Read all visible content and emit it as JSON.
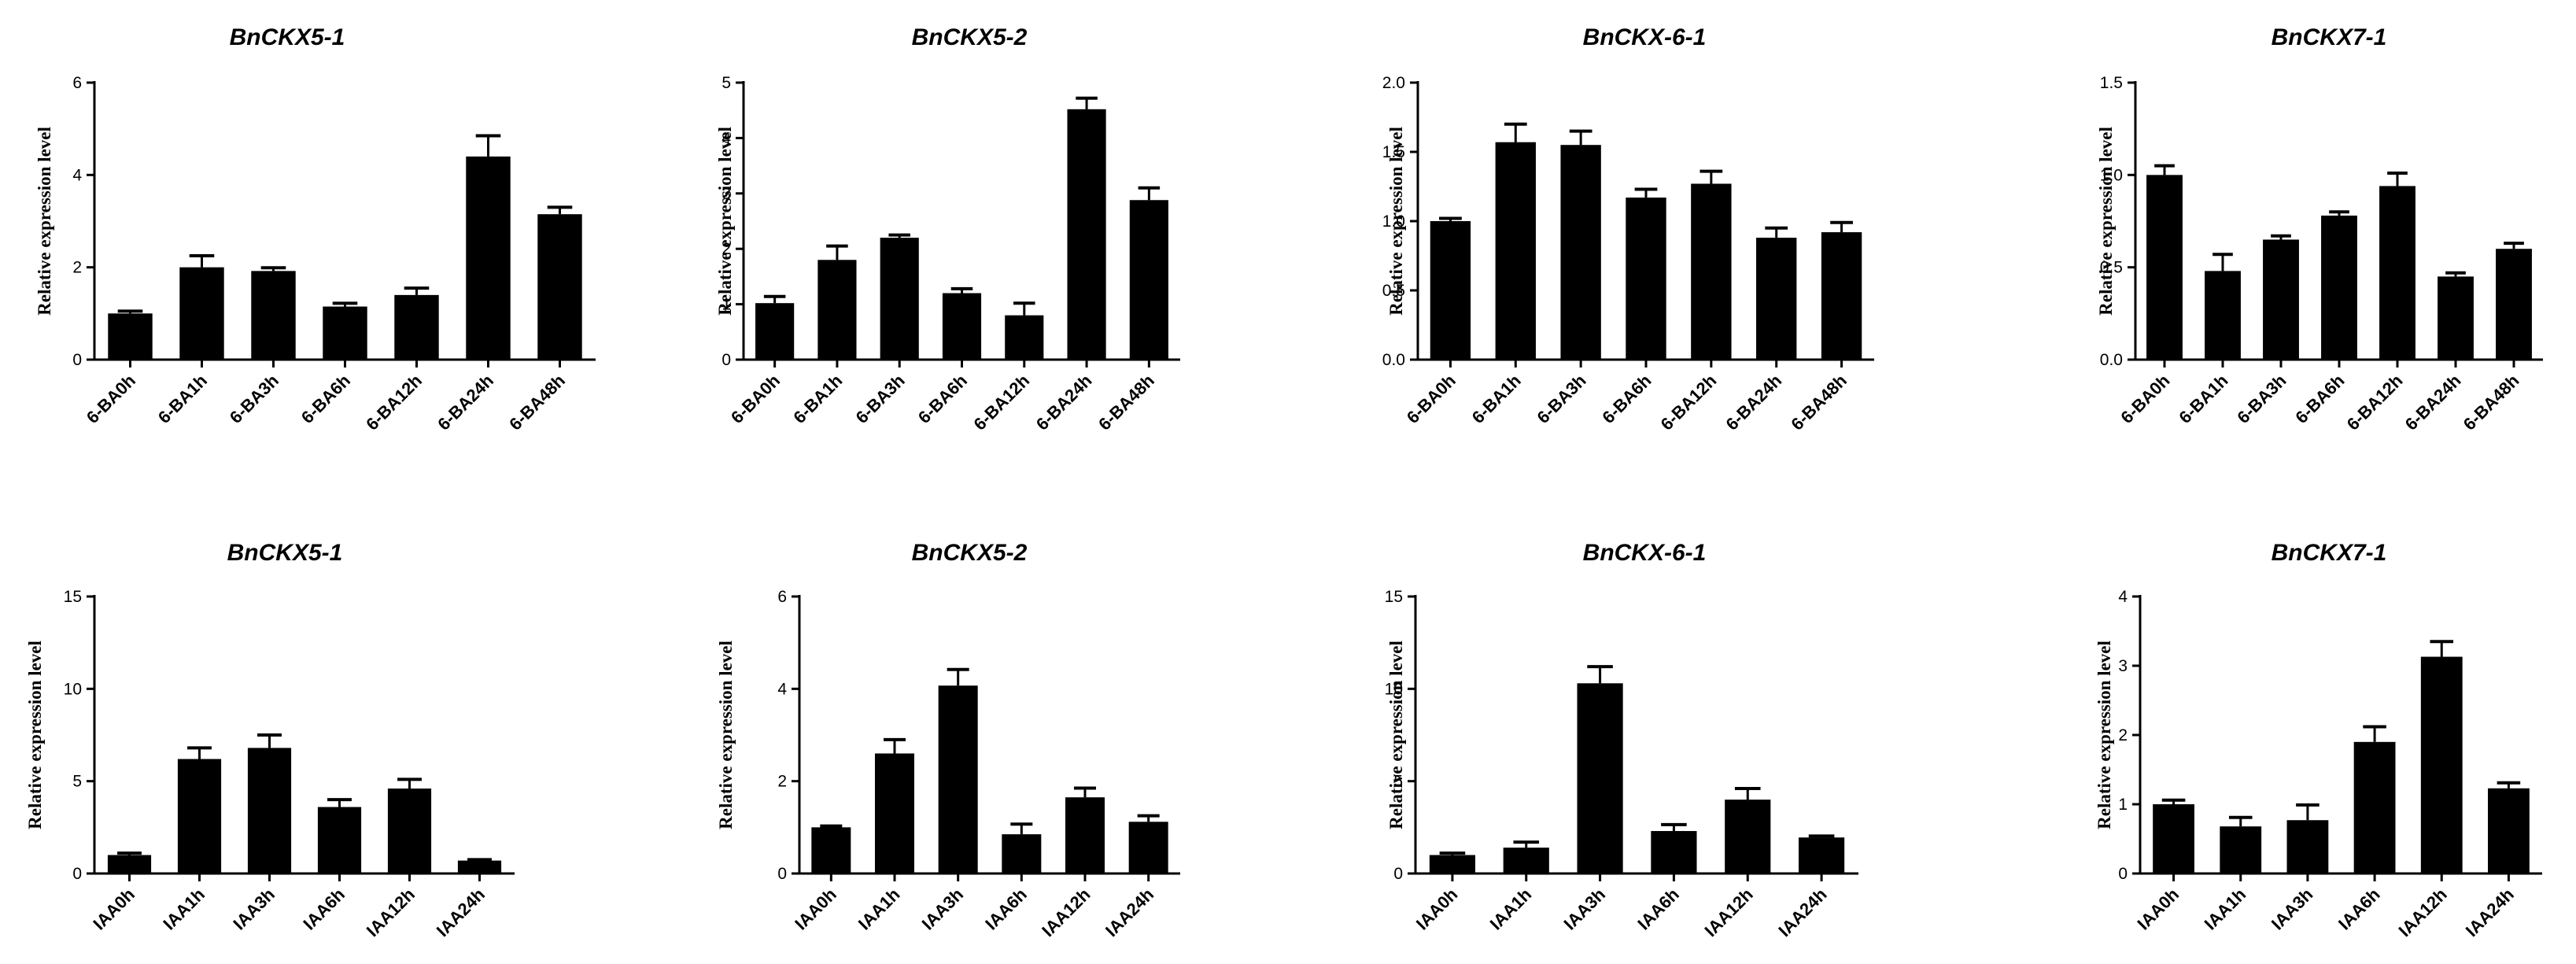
{
  "chart_data": [
    {
      "type": "bar",
      "title": "BnCKX5-1",
      "ylabel": "Relative expression level",
      "ylim": [
        0,
        6
      ],
      "yticks": [
        "0",
        "2",
        "4",
        "6"
      ],
      "categories": [
        "6-BA0h",
        "6-BA1h",
        "6-BA3h",
        "6-BA6h",
        "6-BA12h",
        "6-BA24h",
        "6-BA48h"
      ],
      "values": [
        1.0,
        2.0,
        1.92,
        1.15,
        1.4,
        4.4,
        3.15
      ],
      "errors": [
        0.05,
        0.25,
        0.07,
        0.07,
        0.15,
        0.45,
        0.15
      ],
      "bar_color": "#000000"
    },
    {
      "type": "bar",
      "title": "BnCKX5-2",
      "ylabel": "Relative expression level",
      "ylim": [
        0,
        5
      ],
      "yticks": [
        "0",
        "1",
        "2",
        "3",
        "4",
        "5"
      ],
      "categories": [
        "6-BA0h",
        "6-BA1h",
        "6-BA3h",
        "6-BA6h",
        "6-BA12h",
        "6-BA24h",
        "6-BA48h"
      ],
      "values": [
        1.02,
        1.8,
        2.2,
        1.2,
        0.8,
        4.52,
        2.88
      ],
      "errors": [
        0.12,
        0.25,
        0.05,
        0.08,
        0.22,
        0.2,
        0.22
      ],
      "bar_color": "#000000"
    },
    {
      "type": "bar",
      "title": "BnCKX-6-1",
      "ylabel": "Relative expression level",
      "ylim": [
        0,
        2
      ],
      "yticks": [
        "0.0",
        "0.5",
        "1.0",
        "1.5",
        "2.0"
      ],
      "categories": [
        "6-BA0h",
        "6-BA1h",
        "6-BA3h",
        "6-BA6h",
        "6-BA12h",
        "6-BA24h",
        "6-BA48h"
      ],
      "values": [
        1.0,
        1.57,
        1.55,
        1.17,
        1.27,
        0.88,
        0.92
      ],
      "errors": [
        0.02,
        0.13,
        0.1,
        0.06,
        0.09,
        0.07,
        0.07
      ],
      "bar_color": "#000000"
    },
    {
      "type": "bar",
      "title": "BnCKX7-1",
      "ylabel": "Relative expression level",
      "ylim": [
        0,
        1.5
      ],
      "yticks": [
        "0.0",
        "0.5",
        "1.0",
        "1.5"
      ],
      "categories": [
        "6-BA0h",
        "6-BA1h",
        "6-BA3h",
        "6-BA6h",
        "6-BA12h",
        "6-BA24h",
        "6-BA48h"
      ],
      "values": [
        1.0,
        0.48,
        0.65,
        0.78,
        0.94,
        0.45,
        0.6
      ],
      "errors": [
        0.05,
        0.09,
        0.02,
        0.02,
        0.07,
        0.02,
        0.03
      ],
      "bar_color": "#000000"
    },
    {
      "type": "bar",
      "title": "BnCKX5-1",
      "ylabel": "Relative expression level",
      "ylim": [
        0,
        15
      ],
      "yticks": [
        "0",
        "5",
        "10",
        "15"
      ],
      "categories": [
        "IAA0h",
        "IAA1h",
        "IAA3h",
        "IAA6h",
        "IAA12h",
        "IAA24h"
      ],
      "values": [
        1.0,
        6.2,
        6.8,
        3.6,
        4.6,
        0.7
      ],
      "errors": [
        0.1,
        0.6,
        0.7,
        0.4,
        0.5,
        0.05
      ],
      "bar_color": "#000000"
    },
    {
      "type": "bar",
      "title": "BnCKX5-2",
      "ylabel": "Relative expression level",
      "ylim": [
        0,
        6
      ],
      "yticks": [
        "0",
        "2",
        "4",
        "6"
      ],
      "categories": [
        "IAA0h",
        "IAA1h",
        "IAA3h",
        "IAA6h",
        "IAA12h",
        "IAA24h"
      ],
      "values": [
        1.0,
        2.6,
        4.07,
        0.85,
        1.65,
        1.12
      ],
      "errors": [
        0.03,
        0.3,
        0.35,
        0.22,
        0.2,
        0.13
      ],
      "bar_color": "#000000"
    },
    {
      "type": "bar",
      "title": "BnCKX-6-1",
      "ylabel": "Relative expression level",
      "ylim": [
        0,
        15
      ],
      "yticks": [
        "0",
        "5",
        "10",
        "15"
      ],
      "categories": [
        "IAA0h",
        "IAA1h",
        "IAA3h",
        "IAA6h",
        "IAA12h",
        "IAA24h"
      ],
      "values": [
        1.0,
        1.4,
        10.3,
        2.3,
        4.0,
        1.95
      ],
      "errors": [
        0.1,
        0.3,
        0.9,
        0.35,
        0.6,
        0.08
      ],
      "bar_color": "#000000"
    },
    {
      "type": "bar",
      "title": "BnCKX7-1",
      "ylabel": "Relative expression level",
      "ylim": [
        0,
        4
      ],
      "yticks": [
        "0",
        "1",
        "2",
        "3",
        "4"
      ],
      "categories": [
        "IAA0h",
        "IAA1h",
        "IAA3h",
        "IAA6h",
        "IAA12h",
        "IAA24h"
      ],
      "values": [
        1.0,
        0.68,
        0.77,
        1.9,
        3.13,
        1.23
      ],
      "errors": [
        0.06,
        0.13,
        0.22,
        0.22,
        0.22,
        0.08
      ],
      "bar_color": "#000000"
    }
  ]
}
